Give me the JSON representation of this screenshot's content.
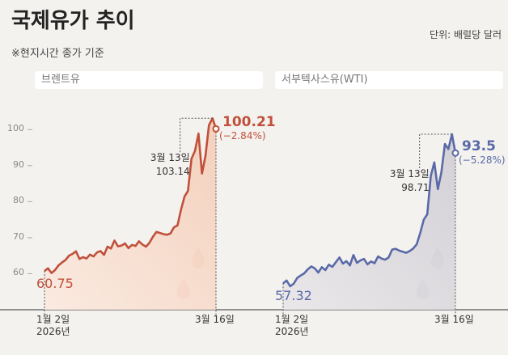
{
  "title": "국제유가 추이",
  "subtitle": "※현지시간 종가 기준",
  "unit": "단위: 배럴당 달러",
  "chart_data": [
    {
      "type": "line",
      "title": "브렌트유",
      "color": "#c0503a",
      "categories": [
        "1월 2일\n2026년",
        null,
        null,
        null,
        null,
        null,
        null,
        null,
        null,
        null,
        null,
        null,
        null,
        null,
        null,
        null,
        null,
        null,
        null,
        null,
        null,
        null,
        null,
        null,
        null,
        null,
        null,
        null,
        null,
        null,
        null,
        null,
        null,
        null,
        null,
        null,
        null,
        null,
        null,
        null,
        null,
        null,
        null,
        null,
        null,
        null,
        null,
        null,
        null,
        "3월 16일"
      ],
      "values": [
        60.75,
        61.5,
        60.2,
        61.0,
        62.3,
        63.1,
        63.8,
        65.0,
        65.5,
        66.2,
        64.1,
        64.6,
        64.2,
        65.3,
        64.8,
        65.9,
        66.3,
        65.2,
        67.5,
        67.0,
        69.2,
        67.6,
        67.8,
        68.4,
        67.1,
        68.0,
        67.7,
        69.0,
        68.1,
        67.5,
        68.6,
        70.3,
        71.6,
        71.3,
        71.0,
        70.8,
        71.2,
        72.9,
        73.4,
        77.7,
        81.4,
        83.0,
        91.9,
        94.1,
        98.9,
        87.8,
        92.7,
        101.2,
        103.14,
        100.21
      ],
      "ylim": [
        50,
        105
      ],
      "yticks": [
        60,
        70,
        80,
        90,
        100
      ],
      "annotations": [
        {
          "text": "3월 13일"
        },
        {
          "text": "(−2.84%)"
        }
      ]
    },
    {
      "type": "line",
      "title": "서부텍사스유(WTI)",
      "color": "#5a6aa8",
      "categories": [
        "1월 2일\n2026년",
        null,
        null,
        null,
        null,
        null,
        null,
        null,
        null,
        null,
        null,
        null,
        null,
        null,
        null,
        null,
        null,
        null,
        null,
        null,
        null,
        null,
        null,
        null,
        null,
        null,
        null,
        null,
        null,
        null,
        null,
        null,
        null,
        null,
        null,
        null,
        null,
        null,
        null,
        null,
        null,
        null,
        null,
        null,
        null,
        null,
        null,
        null,
        null,
        "3월 16일"
      ],
      "values": [
        57.32,
        58.1,
        56.5,
        57.2,
        58.8,
        59.5,
        60.1,
        61.2,
        62.0,
        61.5,
        60.3,
        61.8,
        61.0,
        62.5,
        61.9,
        63.2,
        64.5,
        62.8,
        63.5,
        62.3,
        65.2,
        63.0,
        63.7,
        64.1,
        62.6,
        63.4,
        62.9,
        64.8,
        64.2,
        63.9,
        64.5,
        66.7,
        66.9,
        66.4,
        66.1,
        65.8,
        66.3,
        67.0,
        68.2,
        71.3,
        75.0,
        76.5,
        87.2,
        90.9,
        83.5,
        88.1,
        96.0,
        94.6,
        98.71,
        93.5
      ],
      "ylim": [
        50,
        105
      ],
      "annotations": [
        {
          "text": "3월 13일"
        },
        {
          "text": "(−5.28%)"
        }
      ]
    }
  ]
}
